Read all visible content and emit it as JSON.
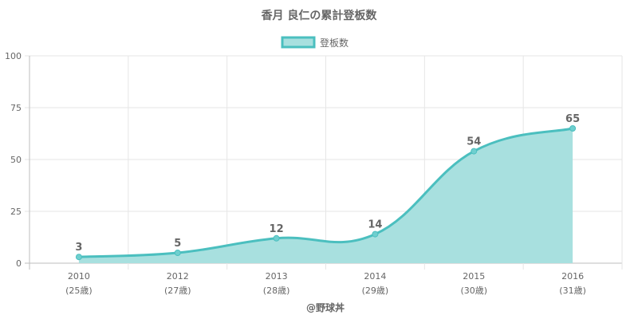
{
  "chart_data": {
    "type": "area",
    "title": "香月 良仁の累計登板数",
    "legend": {
      "position": "top-center",
      "label": "登板数"
    },
    "categories": [
      "2010",
      "2012",
      "2013",
      "2014",
      "2015",
      "2016"
    ],
    "category_sublabels": [
      "(25歳)",
      "(27歳)",
      "(28歳)",
      "(29歳)",
      "(30歳)",
      "(31歳)"
    ],
    "series": [
      {
        "name": "登板数",
        "values": [
          3,
          5,
          12,
          14,
          54,
          65
        ]
      }
    ],
    "ylim": [
      0,
      100
    ],
    "yticks": [
      0,
      25,
      50,
      75,
      100
    ],
    "grid": true,
    "colors": {
      "line": "#4bbfbf",
      "fill": "#a8e0df",
      "point": "#6fcfcf"
    },
    "data_labels": true
  },
  "credit": "@野球丼"
}
